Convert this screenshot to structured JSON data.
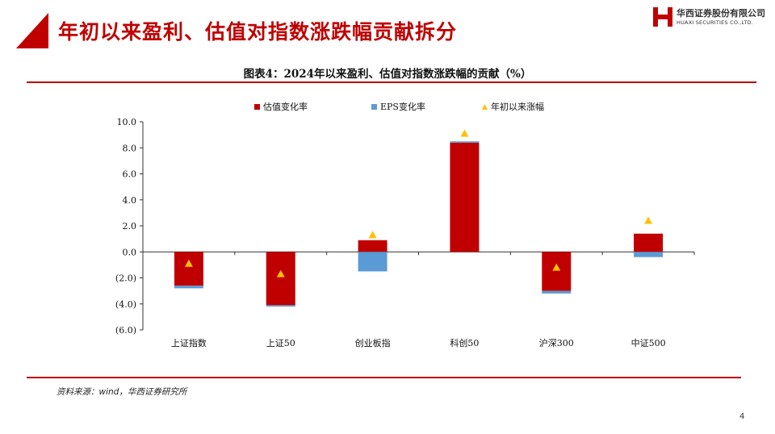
{
  "header": {
    "title": "年初以来盈利、估值对指数涨跌幅贡献拆分",
    "logo": {
      "name_cn": "华西证券股份有限公司",
      "name_en": "HUAXI SECURITIES CO.,LTD."
    }
  },
  "chart_title": "图表4：2024年以来盈利、估值对指数涨跌幅的贡献（%）",
  "source": "资料来源：wind，华西证券研究所",
  "page_number": "4",
  "colors": {
    "valuation": "#c00000",
    "eps": "#5b9bd5",
    "ytd": "#ffc000",
    "brand": "#c00000"
  },
  "chart_data": {
    "type": "bar",
    "stacked": true,
    "categories": [
      "上证指数",
      "上证50",
      "创业板指",
      "科创50",
      "沪深300",
      "中证500"
    ],
    "series": [
      {
        "name": "估值变化率",
        "kind": "bar",
        "values": [
          -2.6,
          -4.1,
          0.9,
          8.4,
          -3.0,
          1.4
        ]
      },
      {
        "name": "EPS变化率",
        "kind": "bar",
        "values": [
          -0.2,
          -0.1,
          -1.5,
          0.1,
          -0.2,
          -0.4
        ]
      },
      {
        "name": "年初以来涨幅",
        "kind": "marker",
        "values": [
          -0.9,
          -1.7,
          1.3,
          9.1,
          -1.2,
          2.4
        ]
      }
    ],
    "ylim": [
      -6,
      10
    ],
    "yticks": [
      10,
      8,
      6,
      4,
      2,
      0,
      -2,
      -4,
      -6
    ],
    "ytick_labels": [
      "10.0",
      "8.0",
      "6.0",
      "4.0",
      "2.0",
      "0.0",
      "(2.0)",
      "(4.0)",
      "(6.0)"
    ],
    "legend_position": "top",
    "grid": false
  }
}
